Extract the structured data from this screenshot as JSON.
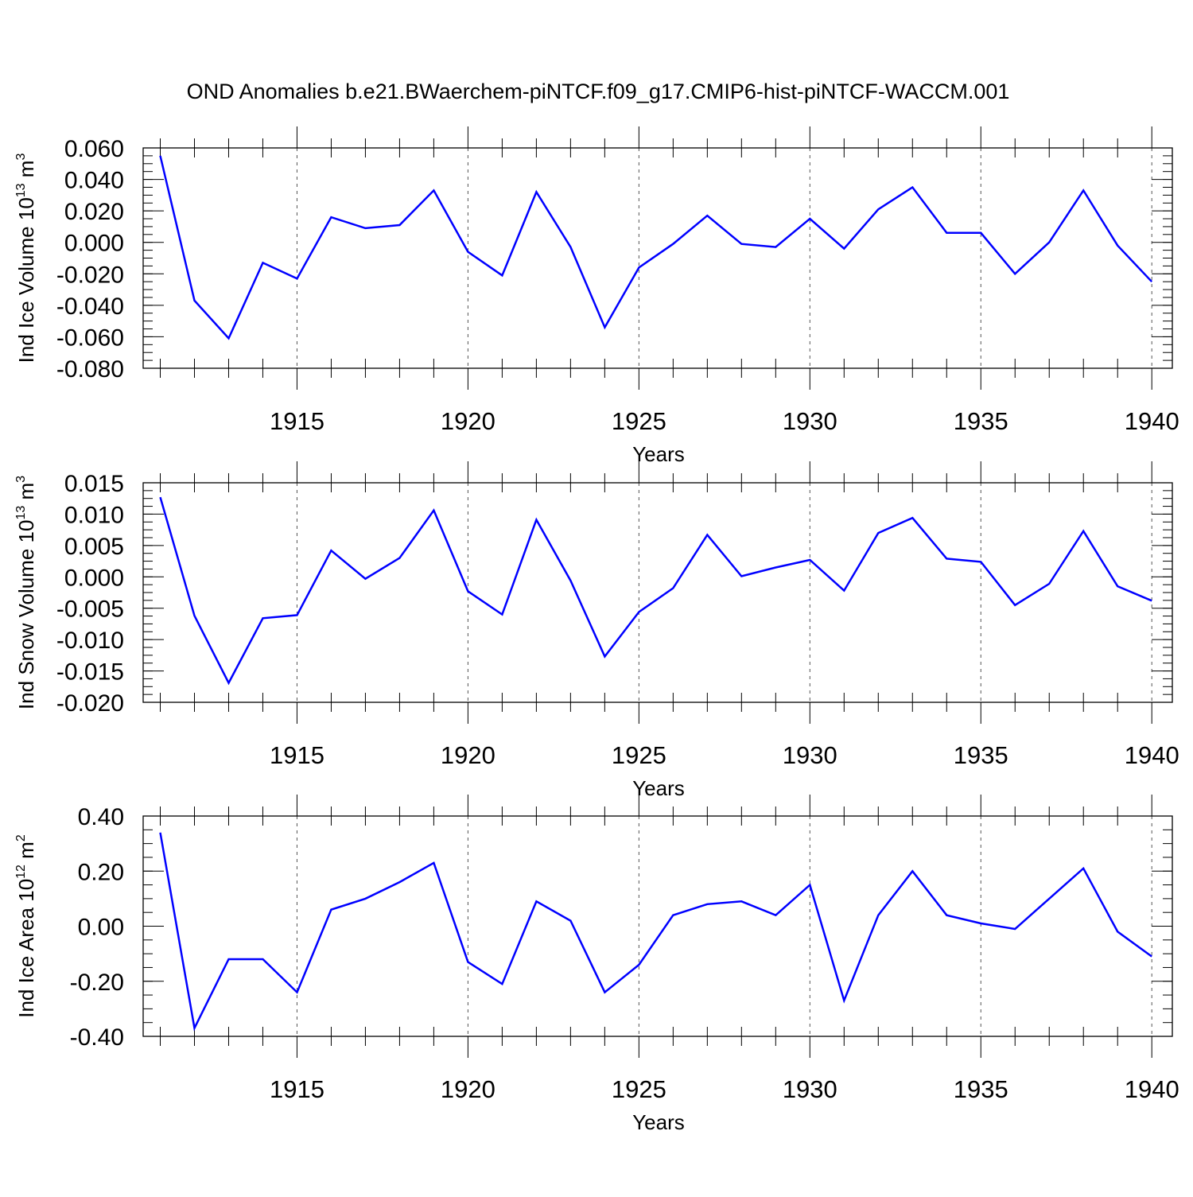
{
  "title": "OND Anomalies b.e21.BWaerchem-piNTCF.f09_g17.CMIP6-hist-piNTCF-WACCM.001",
  "colors": {
    "series": "#0000ff",
    "axis": "#000000",
    "grid": "#555555",
    "background": "#ffffff"
  },
  "chart_data": [
    {
      "type": "line",
      "name": "ice-volume",
      "ylabel": {
        "base": "Ind Ice Volume 10",
        "exp": "13",
        "unit": " m",
        "unit_exp": "3"
      },
      "xlabel": "Years",
      "x": [
        1911,
        1912,
        1913,
        1914,
        1915,
        1916,
        1917,
        1918,
        1919,
        1920,
        1921,
        1922,
        1923,
        1924,
        1925,
        1926,
        1927,
        1928,
        1929,
        1930,
        1931,
        1932,
        1933,
        1934,
        1935,
        1936,
        1937,
        1938,
        1939,
        1940
      ],
      "values": [
        0.055,
        -0.037,
        -0.061,
        -0.013,
        -0.023,
        0.016,
        0.009,
        0.011,
        0.033,
        -0.006,
        -0.021,
        0.032,
        -0.003,
        -0.054,
        -0.016,
        -0.001,
        0.017,
        -0.001,
        -0.003,
        0.015,
        -0.004,
        0.021,
        0.035,
        0.006,
        0.006,
        -0.02,
        0.0,
        0.033,
        -0.002,
        -0.025
      ],
      "xlim": [
        1910.5,
        1940.6
      ],
      "ylim": [
        -0.08,
        0.06
      ],
      "yticks": [
        0.06,
        0.04,
        0.02,
        0.0,
        -0.02,
        -0.04,
        -0.06,
        -0.08
      ],
      "ytick_labels": [
        "0.060",
        "0.040",
        "0.020",
        "0.000",
        "-0.020",
        "-0.040",
        "-0.060",
        "-0.080"
      ],
      "yminor": 0.005,
      "xticks": [
        1915,
        1920,
        1925,
        1930,
        1935,
        1940
      ],
      "xtick_labels": [
        "1915",
        "1920",
        "1925",
        "1930",
        "1935",
        "1940"
      ],
      "grid": "vertical-dashed"
    },
    {
      "type": "line",
      "name": "snow-volume",
      "ylabel": {
        "base": "Ind Snow Volume 10",
        "exp": "13",
        "unit": " m",
        "unit_exp": "3"
      },
      "xlabel": "Years",
      "x": [
        1911,
        1912,
        1913,
        1914,
        1915,
        1916,
        1917,
        1918,
        1919,
        1920,
        1921,
        1922,
        1923,
        1924,
        1925,
        1926,
        1927,
        1928,
        1929,
        1930,
        1931,
        1932,
        1933,
        1934,
        1935,
        1936,
        1937,
        1938,
        1939,
        1940
      ],
      "values": [
        0.0127,
        -0.0062,
        -0.0169,
        -0.0066,
        -0.0061,
        0.0042,
        -0.0003,
        0.003,
        0.0106,
        -0.0023,
        -0.006,
        0.0091,
        -0.0006,
        -0.0127,
        -0.0056,
        -0.0018,
        0.0067,
        0.0001,
        0.0015,
        0.0027,
        -0.0022,
        0.007,
        0.0094,
        0.0029,
        0.0024,
        -0.0045,
        -0.0011,
        0.0073,
        -0.0015,
        -0.0038
      ],
      "xlim": [
        1910.5,
        1940.6
      ],
      "ylim": [
        -0.02,
        0.015
      ],
      "yticks": [
        0.015,
        0.01,
        0.005,
        0.0,
        -0.005,
        -0.01,
        -0.015,
        -0.02
      ],
      "ytick_labels": [
        "0.015",
        "0.010",
        "0.005",
        "0.000",
        "-0.005",
        "-0.010",
        "-0.015",
        "-0.020"
      ],
      "yminor": 0.00125,
      "xticks": [
        1915,
        1920,
        1925,
        1930,
        1935,
        1940
      ],
      "xtick_labels": [
        "1915",
        "1920",
        "1925",
        "1930",
        "1935",
        "1940"
      ],
      "grid": "vertical-dashed"
    },
    {
      "type": "line",
      "name": "ice-area",
      "ylabel": {
        "base": "Ind Ice Area 10",
        "exp": "12",
        "unit": " m",
        "unit_exp": "2"
      },
      "xlabel": "Years",
      "x": [
        1911,
        1912,
        1913,
        1914,
        1915,
        1916,
        1917,
        1918,
        1919,
        1920,
        1921,
        1922,
        1923,
        1924,
        1925,
        1926,
        1927,
        1928,
        1929,
        1930,
        1931,
        1932,
        1933,
        1934,
        1935,
        1936,
        1937,
        1938,
        1939,
        1940
      ],
      "values": [
        0.34,
        -0.37,
        -0.12,
        -0.12,
        -0.24,
        0.06,
        0.1,
        0.16,
        0.23,
        -0.13,
        -0.21,
        0.09,
        0.02,
        -0.24,
        -0.14,
        0.04,
        0.08,
        0.09,
        0.04,
        0.15,
        -0.27,
        0.04,
        0.2,
        0.04,
        0.01,
        -0.01,
        0.1,
        0.21,
        -0.02,
        -0.11
      ],
      "xlim": [
        1910.5,
        1940.6
      ],
      "ylim": [
        -0.4,
        0.4
      ],
      "yticks": [
        0.4,
        0.2,
        0.0,
        -0.2,
        -0.4
      ],
      "ytick_labels": [
        "0.40",
        "0.20",
        "0.00",
        "-0.20",
        "-0.40"
      ],
      "yminor": 0.05,
      "xticks": [
        1915,
        1920,
        1925,
        1930,
        1935,
        1940
      ],
      "xtick_labels": [
        "1915",
        "1920",
        "1925",
        "1930",
        "1935",
        "1940"
      ],
      "grid": "vertical-dashed"
    }
  ]
}
